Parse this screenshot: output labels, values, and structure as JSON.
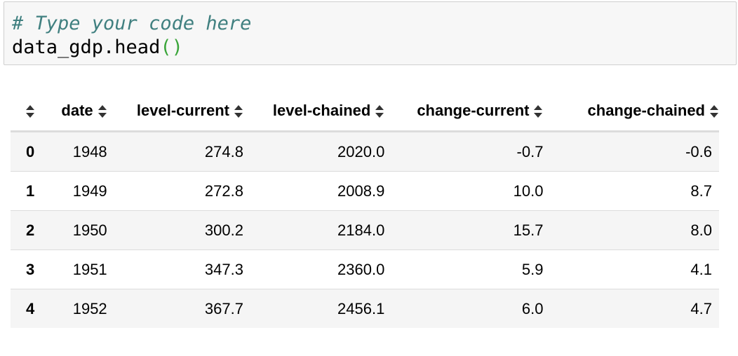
{
  "cell": {
    "comment": "# Type your code here",
    "code_name": "data_gdp.head",
    "code_paren": "()"
  },
  "table": {
    "columns": [
      "date",
      "level-current",
      "level-chained",
      "change-current",
      "change-chained"
    ],
    "rows": [
      {
        "index": "0",
        "date": "1948",
        "level_current": "274.8",
        "level_chained": "2020.0",
        "change_current": "-0.7",
        "change_chained": "-0.6"
      },
      {
        "index": "1",
        "date": "1949",
        "level_current": "272.8",
        "level_chained": "2008.9",
        "change_current": "10.0",
        "change_chained": "8.7"
      },
      {
        "index": "2",
        "date": "1950",
        "level_current": "300.2",
        "level_chained": "2184.0",
        "change_current": "15.7",
        "change_chained": "8.0"
      },
      {
        "index": "3",
        "date": "1951",
        "level_current": "347.3",
        "level_chained": "2360.0",
        "change_current": "5.9",
        "change_chained": "4.1"
      },
      {
        "index": "4",
        "date": "1952",
        "level_current": "367.7",
        "level_chained": "2456.1",
        "change_current": "6.0",
        "change_chained": "4.7"
      }
    ]
  }
}
